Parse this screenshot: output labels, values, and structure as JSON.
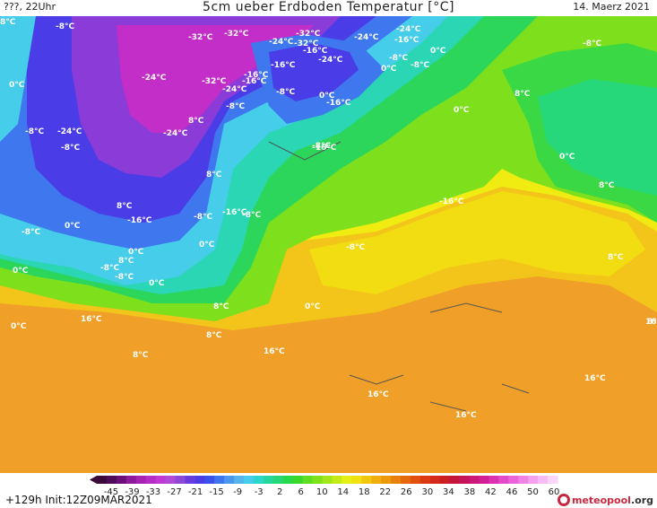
{
  "header": {
    "left": "???, 22Uhr",
    "title": "5cm ueber Erdboden Temperatur [°C]",
    "date": "14. Maerz 2021"
  },
  "footer": {
    "run": "+129h  Init:12Z09MAR2021",
    "logo": "meteopool",
    "logo_suffix": ".org"
  },
  "colorbar": {
    "ticks": [
      "-45",
      "-39",
      "-33",
      "-27",
      "-21",
      "-15",
      "-9",
      "-3",
      "2",
      "6",
      "10",
      "14",
      "18",
      "22",
      "26",
      "30",
      "34",
      "38",
      "42",
      "46",
      "50",
      "60"
    ],
    "colors": [
      "#3a0a3a",
      "#4d0b5a",
      "#6b0f78",
      "#8c1a9a",
      "#a622b0",
      "#b52cc6",
      "#c038d6",
      "#b04bd8",
      "#8e48d8",
      "#6a3ce0",
      "#4a3ce6",
      "#3b52ea",
      "#3e74ee",
      "#4d96ee",
      "#55b4ec",
      "#47cdec",
      "#2cd6cf",
      "#25d69f",
      "#25d875",
      "#27d84a",
      "#3ad82b",
      "#5dde23",
      "#7ee21b",
      "#a0e618",
      "#c4ec14",
      "#e6f014",
      "#f2e010",
      "#f2c80e",
      "#f0b00c",
      "#ee980c",
      "#ea800c",
      "#e6680c",
      "#e2500e",
      "#dc3a12",
      "#d42a18",
      "#cc1e22",
      "#c4163a",
      "#c6145a",
      "#cc1678",
      "#d41e96",
      "#dc32b2",
      "#e44ac8",
      "#ea66d8",
      "#f082e4",
      "#f4a0ee",
      "#f8bcf4",
      "#fbd6f8"
    ]
  },
  "map_labels": [
    {
      "text": "-8°C"
    },
    {
      "text": "-32°C"
    },
    {
      "text": "-32°C"
    },
    {
      "text": "-24°C"
    },
    {
      "text": "-32°C"
    },
    {
      "text": "-24°C"
    },
    {
      "text": "-32°C"
    },
    {
      "text": "-24°C"
    },
    {
      "text": "-16°C"
    },
    {
      "text": "-16°C"
    },
    {
      "text": "-24°C"
    },
    {
      "text": "-8°C"
    },
    {
      "text": "-8°C"
    },
    {
      "text": "0°C"
    },
    {
      "text": "-8°C"
    },
    {
      "text": "0°C"
    },
    {
      "text": "-24°C"
    },
    {
      "text": "-32°C"
    },
    {
      "text": "-16°C"
    },
    {
      "text": "-24°C"
    },
    {
      "text": "-16°C"
    },
    {
      "text": "-16°C"
    },
    {
      "text": "-8°C"
    },
    {
      "text": "-8°C"
    },
    {
      "text": "0°C"
    },
    {
      "text": "0°C"
    },
    {
      "text": "-16°C"
    },
    {
      "text": "-8°C"
    },
    {
      "text": "-8°C"
    },
    {
      "text": "0°C"
    },
    {
      "text": "8°C"
    },
    {
      "text": "8°C"
    },
    {
      "text": "-24°C"
    },
    {
      "text": "-24°C"
    },
    {
      "text": "-8°C"
    },
    {
      "text": "-16°C"
    },
    {
      "text": "0°C"
    },
    {
      "text": "8°C"
    },
    {
      "text": "-16°C"
    },
    {
      "text": "8°C"
    },
    {
      "text": "8°C"
    },
    {
      "text": "-16°C"
    },
    {
      "text": "-8°C"
    },
    {
      "text": "-16°C"
    },
    {
      "text": "-8°C"
    },
    {
      "text": "0°C"
    },
    {
      "text": "-8°C"
    },
    {
      "text": "0°C"
    },
    {
      "text": "0°C"
    },
    {
      "text": "-8°C"
    },
    {
      "text": "8°C"
    },
    {
      "text": "-8°C"
    },
    {
      "text": "0°C"
    },
    {
      "text": "-8°C"
    },
    {
      "text": "0°C"
    },
    {
      "text": "0°C"
    },
    {
      "text": "8°C"
    },
    {
      "text": "0°C"
    },
    {
      "text": "16°C"
    },
    {
      "text": "8°C"
    },
    {
      "text": "8°C"
    },
    {
      "text": "8°C"
    },
    {
      "text": "16°C"
    },
    {
      "text": "16°C"
    },
    {
      "text": "16°C"
    },
    {
      "text": "16°C"
    },
    {
      "text": "16°C"
    },
    {
      "text": "8°C"
    },
    {
      "text": "8°C"
    }
  ]
}
